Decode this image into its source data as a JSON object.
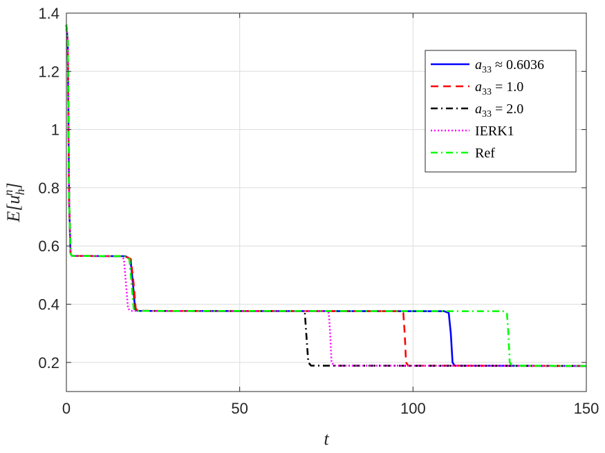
{
  "chart_data": {
    "type": "line",
    "xlabel": "t",
    "ylabel": "E[u_h^n]",
    "xlim": [
      0,
      150
    ],
    "ylim": [
      0.1,
      1.4
    ],
    "xticks": [
      0,
      50,
      100,
      150
    ],
    "xtick_labels": [
      "0",
      "50",
      "100",
      "150"
    ],
    "yticks": [
      0.2,
      0.4,
      0.6,
      0.8,
      1.0,
      1.2,
      1.4
    ],
    "ytick_labels": [
      "0.2",
      "0.4",
      "0.6",
      "0.8",
      "1",
      "1.2",
      "1.4"
    ],
    "grid": true,
    "legend_position": "top-right",
    "series": [
      {
        "name": "a₃₃ ≈ 0.6036",
        "color": "#0000ff",
        "style": "solid",
        "points": [
          [
            0,
            1.36
          ],
          [
            0.4,
            1.3
          ],
          [
            0.8,
            0.75
          ],
          [
            1.2,
            0.575
          ],
          [
            1.6,
            0.566
          ],
          [
            17,
            0.565
          ],
          [
            18.5,
            0.555
          ],
          [
            19.2,
            0.47
          ],
          [
            19.8,
            0.385
          ],
          [
            20.5,
            0.377
          ],
          [
            109,
            0.376
          ],
          [
            110.3,
            0.37
          ],
          [
            110.9,
            0.3
          ],
          [
            111.4,
            0.2
          ],
          [
            112,
            0.189
          ],
          [
            150,
            0.188
          ]
        ]
      },
      {
        "name": "a₃₃ = 1.0",
        "color": "#ff0000",
        "style": "dashed",
        "points": [
          [
            0,
            1.36
          ],
          [
            0.4,
            1.3
          ],
          [
            0.8,
            0.75
          ],
          [
            1.2,
            0.575
          ],
          [
            1.6,
            0.566
          ],
          [
            17,
            0.565
          ],
          [
            18.6,
            0.555
          ],
          [
            19.4,
            0.47
          ],
          [
            20,
            0.385
          ],
          [
            20.6,
            0.377
          ],
          [
            96,
            0.376
          ],
          [
            97.2,
            0.37
          ],
          [
            97.6,
            0.3
          ],
          [
            98,
            0.2
          ],
          [
            98.6,
            0.189
          ],
          [
            150,
            0.188
          ]
        ]
      },
      {
        "name": "a₃₃ = 2.0",
        "color": "#000000",
        "style": "dashdot",
        "points": [
          [
            0,
            1.36
          ],
          [
            0.4,
            1.3
          ],
          [
            0.8,
            0.75
          ],
          [
            1.2,
            0.575
          ],
          [
            1.6,
            0.566
          ],
          [
            17,
            0.565
          ],
          [
            18.2,
            0.555
          ],
          [
            18.9,
            0.47
          ],
          [
            19.5,
            0.385
          ],
          [
            20.2,
            0.377
          ],
          [
            68,
            0.376
          ],
          [
            68.8,
            0.37
          ],
          [
            69.2,
            0.3
          ],
          [
            69.8,
            0.2
          ],
          [
            70.6,
            0.189
          ],
          [
            150,
            0.188
          ]
        ]
      },
      {
        "name": "IERK1",
        "color": "#ff00ff",
        "style": "dotted",
        "points": [
          [
            0,
            1.36
          ],
          [
            0.4,
            1.3
          ],
          [
            0.8,
            0.75
          ],
          [
            1.2,
            0.575
          ],
          [
            1.6,
            0.566
          ],
          [
            15.8,
            0.565
          ],
          [
            16.6,
            0.555
          ],
          [
            17.2,
            0.47
          ],
          [
            17.8,
            0.385
          ],
          [
            18.6,
            0.377
          ],
          [
            75,
            0.376
          ],
          [
            75.7,
            0.37
          ],
          [
            76.1,
            0.3
          ],
          [
            76.5,
            0.2
          ],
          [
            77.3,
            0.189
          ],
          [
            150,
            0.188
          ]
        ]
      },
      {
        "name": "Ref",
        "color": "#00ff00",
        "style": "dashdot",
        "points": [
          [
            0,
            1.36
          ],
          [
            0.4,
            1.3
          ],
          [
            0.8,
            0.75
          ],
          [
            1.2,
            0.575
          ],
          [
            1.6,
            0.566
          ],
          [
            17.2,
            0.565
          ],
          [
            18.2,
            0.555
          ],
          [
            18.8,
            0.47
          ],
          [
            19.4,
            0.385
          ],
          [
            20,
            0.377
          ],
          [
            126,
            0.376
          ],
          [
            127.1,
            0.37
          ],
          [
            127.5,
            0.3
          ],
          [
            127.9,
            0.2
          ],
          [
            128.6,
            0.189
          ],
          [
            150,
            0.188
          ]
        ]
      }
    ],
    "legend": [
      {
        "math_base": "a",
        "math_sub": "33",
        "rest": " ≈ 0.6036"
      },
      {
        "math_base": "a",
        "math_sub": "33",
        "rest": " = 1.0"
      },
      {
        "math_base": "a",
        "math_sub": "33",
        "rest": " = 2.0"
      },
      {
        "math_base": "",
        "math_sub": "",
        "rest": "IERK1"
      },
      {
        "math_base": "",
        "math_sub": "",
        "rest": "Ref"
      }
    ]
  }
}
